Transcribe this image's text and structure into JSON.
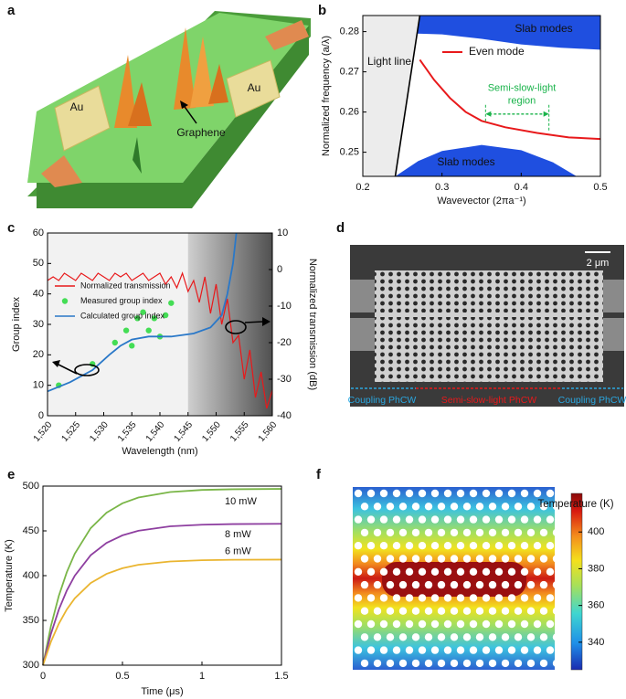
{
  "chart_data": [
    {
      "type": "illustration",
      "panel": "a",
      "labels": [
        "Au",
        "Au",
        "Graphene"
      ]
    },
    {
      "type": "band",
      "panel": "b",
      "xlabel": "Wavevector (2πa⁻¹)",
      "ylabel": "Normalized frequency (a/λ)",
      "xlim": [
        0.2,
        0.5
      ],
      "ylim": [
        0.244,
        0.284
      ],
      "xticks": [
        0.2,
        0.3,
        0.4,
        0.5
      ],
      "yticks": [
        0.25,
        0.26,
        0.27,
        0.28
      ],
      "light_line": {
        "name": "Light line",
        "color": "#000000",
        "x": [
          0.241,
          0.272
        ],
        "values": [
          0.244,
          0.284
        ]
      },
      "slab_modes": {
        "name": "Slab modes",
        "color": "#1f4fe0",
        "upper": {
          "x": [
            0.268,
            0.3,
            0.35,
            0.4,
            0.45,
            0.5
          ],
          "values": [
            0.2795,
            0.2793,
            0.2782,
            0.2768,
            0.276,
            0.2755
          ]
        },
        "lower": {
          "x": [
            0.241,
            0.27,
            0.3,
            0.35,
            0.4,
            0.44,
            0.47
          ],
          "values": [
            0.244,
            0.2478,
            0.2503,
            0.2518,
            0.2505,
            0.2475,
            0.244
          ]
        }
      },
      "series": [
        {
          "name": "Even mode",
          "color": "#e8191b",
          "x": [
            0.272,
            0.29,
            0.31,
            0.33,
            0.35,
            0.38,
            0.42,
            0.46,
            0.5
          ],
          "values": [
            0.273,
            0.268,
            0.2635,
            0.26,
            0.2578,
            0.2562,
            0.2548,
            0.2537,
            0.2533
          ]
        }
      ],
      "annotation": {
        "text": [
          "Semi-slow-light",
          "region"
        ],
        "color": "#19b34a",
        "x": [
          0.355,
          0.435
        ],
        "y": 0.2595
      }
    },
    {
      "type": "dual-axis",
      "panel": "c",
      "xlabel": "Wavelength (nm)",
      "ylabel": "Group index",
      "y2label": "Normalized transmission (dB)",
      "xlim": [
        1520,
        1560
      ],
      "ylim": [
        0,
        60
      ],
      "y2lim": [
        -40,
        10
      ],
      "xticks": [
        {
          "value": 1520,
          "label": "1,520"
        },
        {
          "value": 1525,
          "label": "1,525"
        },
        {
          "value": 1530,
          "label": "1,530"
        },
        {
          "value": 1535,
          "label": "1,535"
        },
        {
          "value": 1540,
          "label": "1,540"
        },
        {
          "value": 1545,
          "label": "1,545"
        },
        {
          "value": 1550,
          "label": "1,550"
        },
        {
          "value": 1555,
          "label": "1,555"
        },
        {
          "value": 1560,
          "label": "1,560"
        }
      ],
      "yticks": [
        0,
        10,
        20,
        30,
        40,
        50,
        60
      ],
      "y2ticks": [
        -40,
        -30,
        -20,
        -10,
        0,
        10
      ],
      "shaded_region": [
        1545,
        1560
      ],
      "series": [
        {
          "name": "Normalized transmission",
          "color": "#e8191b",
          "axis": "y2",
          "x": [
            1520,
            1521,
            1522,
            1523,
            1524,
            1525,
            1526,
            1527,
            1528,
            1529,
            1530,
            1531,
            1532,
            1533,
            1534,
            1535,
            1536,
            1537,
            1538,
            1539,
            1540,
            1541,
            1542,
            1543,
            1544,
            1545,
            1546,
            1547,
            1548,
            1549,
            1550,
            1551,
            1552,
            1553,
            1554,
            1555,
            1556,
            1557,
            1558,
            1559,
            1560
          ],
          "values": [
            -3,
            -2,
            -3,
            -1,
            -2,
            -3,
            -1,
            -2,
            -3,
            -1,
            -2,
            -3,
            -1,
            -2,
            -1,
            -3,
            -2,
            -1,
            -3,
            -2,
            -1,
            -4,
            -2,
            -5,
            -1,
            -6,
            -3,
            -9,
            -2,
            -12,
            -4,
            -15,
            -8,
            -20,
            -18,
            -30,
            -22,
            -35,
            -28,
            -38,
            -33
          ]
        },
        {
          "name": "Measured group index",
          "color": "#44dd55",
          "style": "scatter",
          "x": [
            1522,
            1528,
            1532,
            1534,
            1535,
            1536,
            1537,
            1538,
            1539,
            1540,
            1541,
            1542
          ],
          "values": [
            10,
            17,
            24,
            28,
            23,
            32,
            34,
            28,
            32,
            26,
            33,
            37
          ]
        },
        {
          "name": "Calculated group index",
          "color": "#2a78c8",
          "x": [
            1520,
            1524,
            1528,
            1531,
            1533,
            1535,
            1538,
            1542,
            1546,
            1549,
            1551,
            1552,
            1553,
            1553.6
          ],
          "values": [
            8,
            11,
            15,
            20,
            23,
            25,
            26,
            26,
            27,
            29,
            33,
            40,
            50,
            60
          ]
        }
      ]
    },
    {
      "type": "micrograph",
      "panel": "d",
      "scale_bar": "2 μm",
      "labels": [
        {
          "text": "Coupling PhCW",
          "color": "#2aa7e0"
        },
        {
          "text": "Semi-slow-light PhCW",
          "color": "#e8191b"
        },
        {
          "text": "Coupling PhCW",
          "color": "#2aa7e0"
        }
      ]
    },
    {
      "type": "line",
      "panel": "e",
      "xlabel": "Time (μs)",
      "ylabel": "Temperature (K)",
      "xlim": [
        0,
        1.5
      ],
      "ylim": [
        300,
        500
      ],
      "xticks": [
        0,
        0.5,
        1,
        1.5
      ],
      "yticks": [
        300,
        350,
        400,
        450,
        500
      ],
      "x": [
        0,
        0.05,
        0.1,
        0.15,
        0.2,
        0.3,
        0.4,
        0.5,
        0.6,
        0.8,
        1.0,
        1.2,
        1.5
      ],
      "series": [
        {
          "name": "10 mW",
          "color": "#7ab648",
          "values": [
            300,
            343.6,
            377.5,
            403.9,
            424.5,
            453.0,
            470.3,
            480.8,
            487.2,
            493.4,
            495.7,
            496.5,
            496.9
          ]
        },
        {
          "name": "8 mW",
          "color": "#8e3fa0",
          "values": [
            300,
            334.9,
            362.2,
            383.4,
            399.9,
            422.8,
            436.6,
            445.0,
            450.1,
            455.1,
            456.9,
            457.6,
            457.9
          ]
        },
        {
          "name": "6 mW",
          "color": "#eab530",
          "values": [
            300,
            326.1,
            346.4,
            362.3,
            374.6,
            391.7,
            402.0,
            408.3,
            412.1,
            415.8,
            417.2,
            417.7,
            417.9
          ]
        }
      ]
    },
    {
      "type": "heatmap",
      "panel": "f",
      "colorbar_label": "Temperature (K)",
      "clim": [
        325,
        421
      ],
      "cticks": [
        340,
        360,
        380,
        400
      ]
    }
  ]
}
